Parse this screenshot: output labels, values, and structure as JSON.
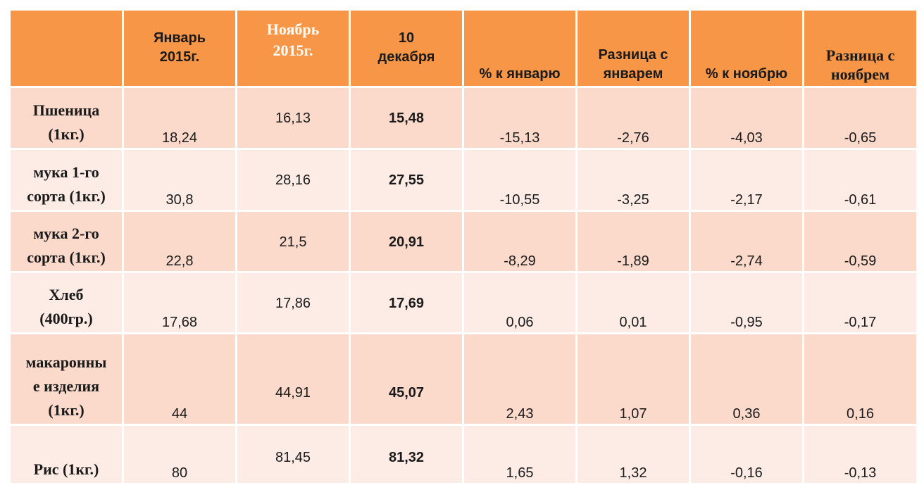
{
  "header": {
    "corner": "",
    "col_jan": [
      "Январь",
      "2015г."
    ],
    "col_nov": [
      "Ноябрь",
      "2015г."
    ],
    "col_dec": [
      "10",
      "декабря"
    ],
    "col_pct_jan": "% к январю",
    "col_diff_jan": [
      "Разница с",
      "январем"
    ],
    "col_pct_nov": "%  к ноябрю",
    "col_diff_nov": [
      "Разница с",
      "ноябрем"
    ]
  },
  "rows": [
    {
      "name": [
        "Пшеница",
        "(1кг.)"
      ],
      "jan": "18,24",
      "nov": "16,13",
      "dec": "15,48",
      "pct_jan": "-15,13",
      "diff_jan": "-2,76",
      "pct_nov": "-4,03",
      "diff_nov": "-0,65"
    },
    {
      "name": [
        "мука 1-го",
        "сорта (1кг.)"
      ],
      "jan": "30,8",
      "nov": "28,16",
      "dec": "27,55",
      "pct_jan": "-10,55",
      "diff_jan": "-3,25",
      "pct_nov": "-2,17",
      "diff_nov": "-0,61"
    },
    {
      "name": [
        "мука 2-го",
        "сорта (1кг.)"
      ],
      "jan": "22,8",
      "nov": "21,5",
      "dec": "20,91",
      "pct_jan": "-8,29",
      "diff_jan": "-1,89",
      "pct_nov": "-2,74",
      "diff_nov": "-0,59"
    },
    {
      "name": [
        "Хлеб",
        "(400гр.)"
      ],
      "jan": "17,68",
      "nov": "17,86",
      "dec": "17,69",
      "pct_jan": "0,06",
      "diff_jan": "0,01",
      "pct_nov": "-0,95",
      "diff_nov": "-0,17"
    },
    {
      "name": [
        "макаронны",
        "е изделия",
        "(1кг.)"
      ],
      "jan": "44",
      "nov": "44,91",
      "dec": "45,07",
      "pct_jan": "2,43",
      "diff_jan": "1,07",
      "pct_nov": "0,36",
      "diff_nov": "0,16"
    },
    {
      "name": [
        "Рис (1кг.)"
      ],
      "jan": "80",
      "nov": "81,45",
      "dec": "81,32",
      "pct_jan": "1,65",
      "diff_jan": "1,32",
      "pct_nov": "-0,16",
      "diff_nov": "-0,13"
    }
  ]
}
